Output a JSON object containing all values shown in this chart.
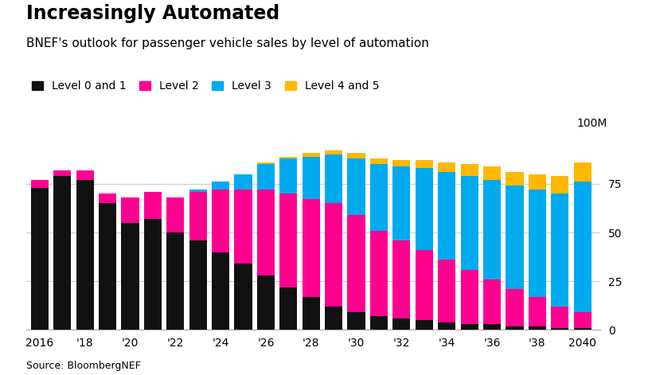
{
  "title": "Increasingly Automated",
  "subtitle": "BNEF's outlook for passenger vehicle sales by level of automation",
  "source": "Source: BloombergNEF",
  "ylabel_right": "100M",
  "years": [
    2016,
    2017,
    2018,
    2019,
    2020,
    2021,
    2022,
    2023,
    2024,
    2025,
    2026,
    2027,
    2028,
    2029,
    2030,
    2031,
    2032,
    2033,
    2034,
    2035,
    2036,
    2037,
    2038,
    2039,
    2040
  ],
  "xtick_labels": [
    "2016",
    "'18",
    "'20",
    "'22",
    "'24",
    "'26",
    "'28",
    "'30",
    "'32",
    "'34",
    "'36",
    "'38",
    "2040"
  ],
  "xtick_positions": [
    2016,
    2018,
    2020,
    2022,
    2024,
    2026,
    2028,
    2030,
    2032,
    2034,
    2036,
    2038,
    2040
  ],
  "level0_1": [
    73,
    79,
    77,
    65,
    55,
    57,
    50,
    46,
    40,
    34,
    28,
    22,
    17,
    12,
    9,
    7,
    6,
    5,
    4,
    3,
    3,
    2,
    2,
    1,
    1
  ],
  "level2": [
    4,
    3,
    5,
    5,
    13,
    14,
    18,
    25,
    32,
    38,
    44,
    48,
    50,
    53,
    50,
    44,
    40,
    36,
    32,
    28,
    23,
    19,
    15,
    11,
    8
  ],
  "level3": [
    0,
    0,
    0,
    0,
    0,
    0,
    0,
    1,
    4,
    8,
    13,
    18,
    22,
    25,
    29,
    34,
    38,
    42,
    45,
    48,
    51,
    53,
    55,
    58,
    67
  ],
  "level4_5": [
    0,
    0,
    0,
    0,
    0,
    0,
    0,
    0,
    0,
    0,
    1,
    1,
    2,
    2,
    3,
    3,
    3,
    4,
    5,
    6,
    7,
    7,
    8,
    9,
    10
  ],
  "colors": {
    "level0_1": "#111111",
    "level2": "#FF0090",
    "level3": "#00AAEE",
    "level4_5": "#FFB800"
  },
  "legend_labels": [
    "Level 0 and 1",
    "Level 2",
    "Level 3",
    "Level 4 and 5"
  ],
  "yticks": [
    0,
    25,
    50,
    75
  ],
  "ylim": [
    0,
    100
  ],
  "background_color": "#ffffff",
  "title_fontsize": 17,
  "subtitle_fontsize": 11,
  "legend_fontsize": 10,
  "source_fontsize": 9,
  "tick_fontsize": 10
}
